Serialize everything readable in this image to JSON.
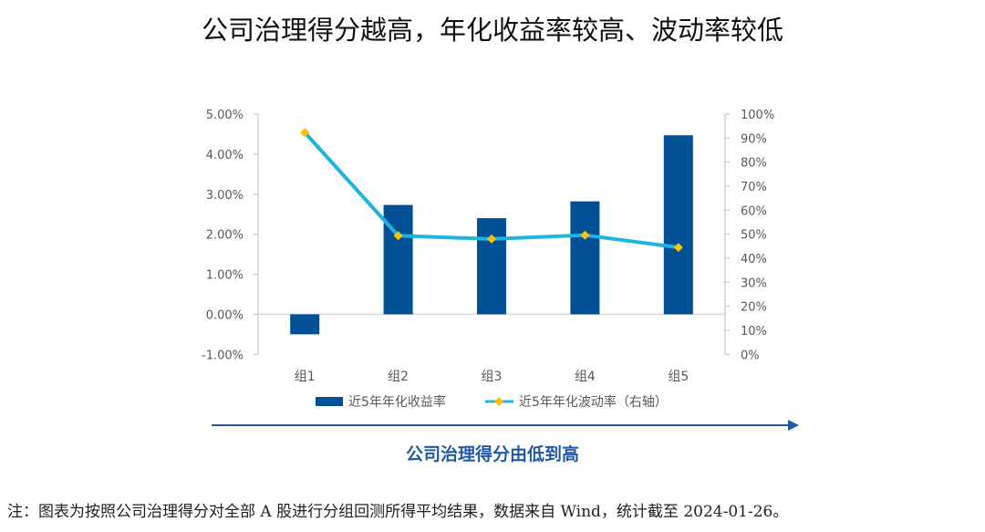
{
  "title": "公司治理得分越高，年化收益率较高、波动率较低",
  "chart_data": {
    "type": "bar+line",
    "categories": [
      "组1",
      "组2",
      "组3",
      "组4",
      "组5"
    ],
    "series": [
      {
        "name": "近5年年化收益率",
        "type": "bar",
        "axis": "left",
        "values": [
          -0.5,
          2.73,
          2.4,
          2.82,
          4.47
        ],
        "unit": "%",
        "color": "#005096"
      },
      {
        "name": "近5年年化波动率（右轴）",
        "type": "line",
        "axis": "right",
        "values": [
          92.3,
          49.4,
          48.0,
          49.6,
          44.5
        ],
        "unit": "%",
        "color": "#1fb4e0",
        "marker_color": "#ffc000"
      }
    ],
    "left_axis": {
      "ylim": [
        -1,
        5
      ],
      "ticks": [
        "-1.00%",
        "0.00%",
        "1.00%",
        "2.00%",
        "3.00%",
        "4.00%",
        "5.00%"
      ]
    },
    "right_axis": {
      "ylim": [
        0,
        100
      ],
      "ticks": [
        "0%",
        "10%",
        "20%",
        "30%",
        "40%",
        "50%",
        "60%",
        "70%",
        "80%",
        "90%",
        "100%"
      ]
    },
    "legend_position": "bottom",
    "xlabel": "公司治理得分由低到高",
    "grid": false
  },
  "note": "注：图表为按照公司治理得分对全部 A 股进行分组回测所得平均结果，数据来自 Wind，统计截至 2024-01-26。"
}
